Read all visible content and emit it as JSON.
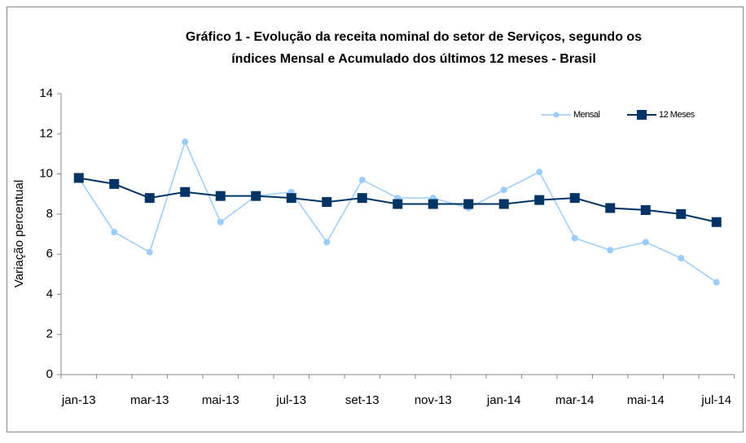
{
  "chart_data": {
    "type": "line",
    "title": "Gráfico 1 - Evolução da receita nominal do setor de Serviços, segundo os",
    "subtitle": "índices Mensal e Acumulado dos últimos 12 meses - Brasil",
    "y_label": "Variação percentual",
    "categories": [
      "jan-13",
      null,
      "mar-13",
      null,
      "mai-13",
      null,
      "jul-13",
      null,
      "set-13",
      null,
      "nov-13",
      null,
      "jan-14",
      null,
      "mar-14",
      null,
      "mai-14",
      null,
      "jul-14"
    ],
    "series": [
      {
        "name": "Mensal",
        "color": "#99ccff",
        "marker": "circle",
        "values": [
          9.8,
          7.1,
          6.1,
          11.6,
          7.6,
          8.9,
          9.1,
          6.6,
          9.7,
          8.8,
          8.8,
          8.3,
          9.2,
          10.1,
          6.8,
          6.2,
          6.6,
          5.8,
          4.6
        ]
      },
      {
        "name": "12 Meses",
        "color": "#003366",
        "marker": "square",
        "values": [
          9.8,
          9.5,
          8.8,
          9.1,
          8.9,
          8.9,
          8.8,
          8.6,
          8.8,
          8.5,
          8.5,
          8.5,
          8.5,
          8.7,
          8.8,
          8.3,
          8.2,
          8.0,
          7.6
        ]
      }
    ],
    "ylim": [
      0,
      14
    ],
    "yticks": [
      0,
      2,
      4,
      6,
      8,
      10,
      12,
      14
    ],
    "grid": false,
    "legend": "upper right"
  }
}
